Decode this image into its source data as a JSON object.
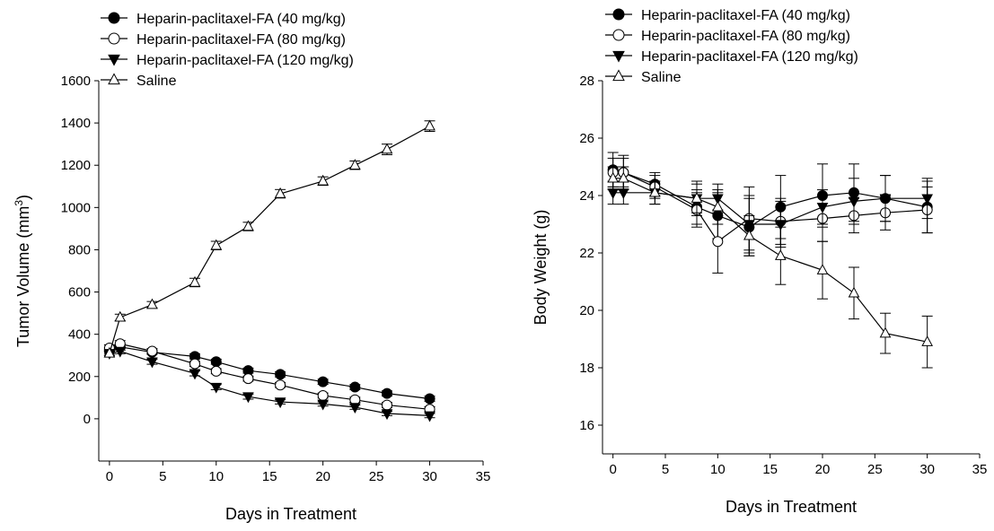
{
  "chart_data": [
    {
      "type": "line",
      "xlabel": "Days in Treatment",
      "ylabel": "Tumor Volume (mm",
      "ylabel_sup": "3",
      "ylabel_close": ")",
      "xlim": [
        -1,
        35
      ],
      "ylim": [
        -200,
        1600
      ],
      "xticks": [
        0,
        5,
        10,
        15,
        20,
        25,
        30,
        35
      ],
      "yticks": [
        0,
        200,
        400,
        600,
        800,
        1000,
        1200,
        1400,
        1600
      ],
      "legend_position": "top-left",
      "series": [
        {
          "name": "Heparin-paclitaxel-FA (40 mg/kg)",
          "marker": "filled-circle",
          "x": [
            0,
            1,
            4,
            8,
            10,
            13,
            16,
            20,
            23,
            26,
            30
          ],
          "y": [
            320,
            340,
            315,
            295,
            270,
            228,
            210,
            175,
            150,
            120,
            95
          ],
          "err": [
            15,
            15,
            10,
            12,
            12,
            12,
            12,
            12,
            12,
            12,
            12
          ]
        },
        {
          "name": "Heparin-paclitaxel-FA (80 mg/kg)",
          "marker": "open-circle",
          "x": [
            0,
            1,
            4,
            8,
            10,
            13,
            16,
            20,
            23,
            26,
            30
          ],
          "y": [
            335,
            355,
            320,
            260,
            225,
            190,
            160,
            110,
            90,
            65,
            45
          ],
          "err": [
            15,
            15,
            12,
            12,
            12,
            12,
            12,
            12,
            12,
            12,
            12
          ]
        },
        {
          "name": "Heparin-paclitaxel-FA (120 mg/kg)",
          "marker": "filled-triangle-down",
          "x": [
            0,
            1,
            4,
            8,
            10,
            13,
            16,
            20,
            23,
            26,
            30
          ],
          "y": [
            310,
            320,
            270,
            215,
            150,
            105,
            80,
            70,
            55,
            25,
            15
          ],
          "err": [
            12,
            12,
            12,
            12,
            12,
            12,
            10,
            10,
            10,
            10,
            10
          ]
        },
        {
          "name": "Saline",
          "marker": "open-triangle-up",
          "x": [
            0,
            1,
            4,
            8,
            10,
            13,
            16,
            20,
            23,
            26,
            30
          ],
          "y": [
            310,
            480,
            540,
            645,
            820,
            910,
            1065,
            1125,
            1200,
            1275,
            1385
          ],
          "err": [
            12,
            15,
            15,
            20,
            20,
            20,
            20,
            20,
            20,
            25,
            25
          ]
        }
      ]
    },
    {
      "type": "line",
      "xlabel": "Days in Treatment",
      "ylabel": "Body Weight (g)",
      "xlim": [
        -1,
        35
      ],
      "ylim": [
        15,
        28
      ],
      "xticks": [
        0,
        5,
        10,
        15,
        20,
        25,
        30,
        35
      ],
      "yticks": [
        16,
        18,
        20,
        22,
        24,
        26,
        28
      ],
      "legend_position": "top",
      "series": [
        {
          "name": "Heparin-paclitaxel-FA (40 mg/kg)",
          "marker": "filled-circle",
          "x": [
            0,
            1,
            4,
            8,
            10,
            13,
            16,
            20,
            23,
            26,
            30
          ],
          "y": [
            24.9,
            24.8,
            24.4,
            23.6,
            23.3,
            22.9,
            23.6,
            24.0,
            24.1,
            23.9,
            23.6
          ],
          "err": [
            0.6,
            0.6,
            0.4,
            0.6,
            0.8,
            1.0,
            1.1,
            1.1,
            1.0,
            0.8,
            0.9
          ]
        },
        {
          "name": "Heparin-paclitaxel-FA (80 mg/kg)",
          "marker": "open-circle",
          "x": [
            0,
            1,
            4,
            8,
            10,
            13,
            16,
            20,
            23,
            26,
            30
          ],
          "y": [
            24.8,
            24.8,
            24.3,
            23.5,
            22.4,
            23.2,
            23.1,
            23.2,
            23.3,
            23.4,
            23.5
          ],
          "err": [
            0.5,
            0.5,
            0.4,
            0.6,
            1.1,
            1.1,
            0.8,
            0.8,
            0.6,
            0.6,
            0.8
          ]
        },
        {
          "name": "Heparin-paclitaxel-FA (120 mg/kg)",
          "marker": "filled-triangle-down",
          "x": [
            0,
            1,
            4,
            8,
            10,
            13,
            16,
            20,
            23,
            26,
            30
          ],
          "y": [
            24.1,
            24.1,
            24.1,
            23.9,
            23.9,
            23.0,
            23.0,
            23.6,
            23.8,
            23.9,
            23.9
          ],
          "err": [
            0.4,
            0.4,
            0.4,
            0.5,
            0.5,
            1.0,
            0.8,
            0.6,
            0.8,
            0.8,
            0.7
          ]
        },
        {
          "name": "Saline",
          "marker": "open-triangle-up",
          "x": [
            0,
            1,
            4,
            8,
            10,
            13,
            16,
            20,
            23,
            26,
            30
          ],
          "y": [
            24.6,
            24.6,
            24.1,
            23.9,
            23.6,
            22.6,
            21.9,
            21.4,
            20.6,
            19.2,
            18.9
          ],
          "err": [
            0.4,
            0.4,
            0.4,
            0.6,
            0.6,
            0.7,
            1.0,
            1.0,
            0.9,
            0.7,
            0.9
          ]
        }
      ]
    }
  ]
}
